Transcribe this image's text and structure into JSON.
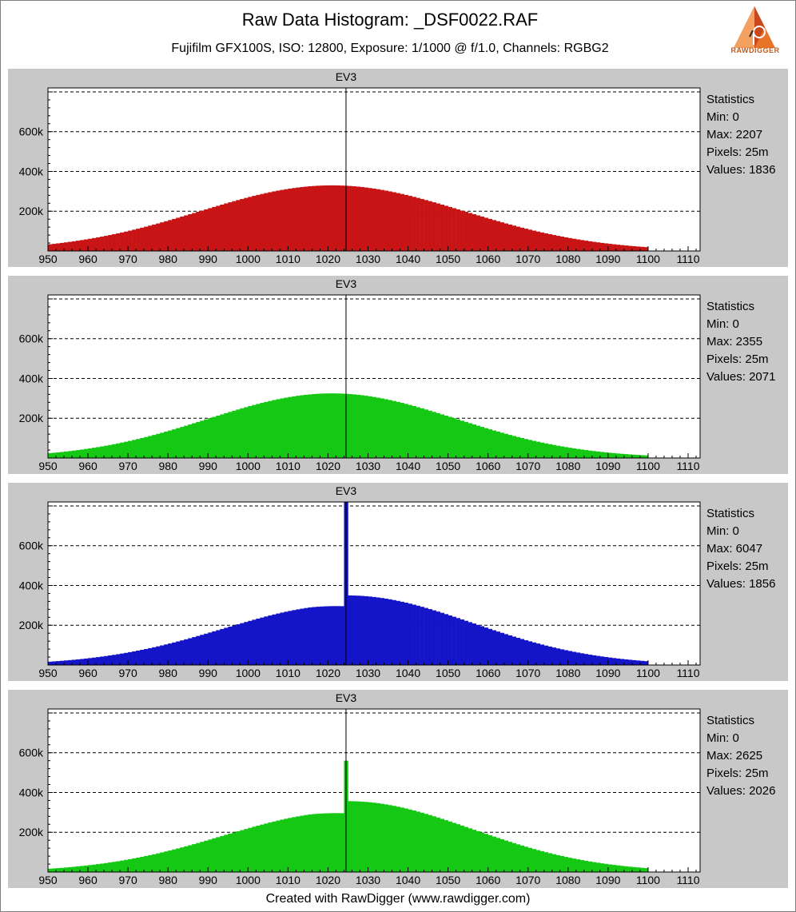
{
  "page": {
    "title": "Raw Data Histogram: _DSF0022.RAF",
    "subtitle": "Fujifilm GFX100S, ISO: 12800, Exposure: 1/1000 @ f/1.0, Channels: RGBG2",
    "footer": "Created with RawDigger (www.rawdigger.com)",
    "logo_text": "RAWDIGGER"
  },
  "chart_data": [
    {
      "type": "bar",
      "name": "",
      "color": "#c81414",
      "xlim": [
        950,
        1113
      ],
      "ylim": [
        0,
        820000
      ],
      "xticks": [
        950,
        960,
        970,
        980,
        990,
        1000,
        1010,
        1020,
        1030,
        1040,
        1050,
        1060,
        1070,
        1080,
        1090,
        1100,
        1110
      ],
      "yticks": [
        200000,
        400000,
        600000
      ],
      "ytick_labels": [
        "200k",
        "400k",
        "600k"
      ],
      "marker": {
        "label": "EV3",
        "x": 1024
      },
      "distribution": {
        "x_start": 950,
        "x_end": 1100,
        "peak_x": 1021,
        "peak_value": 330000,
        "sigma": 33
      },
      "spike": null,
      "stats": {
        "heading": "Statistics",
        "min": "Min: 0",
        "max": "Max: 2207",
        "pixels": "Pixels: 25m",
        "values": "Values: 1836"
      }
    },
    {
      "type": "bar",
      "name": "",
      "color": "#14c814",
      "xlim": [
        950,
        1113
      ],
      "ylim": [
        0,
        820000
      ],
      "xticks": [
        950,
        960,
        970,
        980,
        990,
        1000,
        1010,
        1020,
        1030,
        1040,
        1050,
        1060,
        1070,
        1080,
        1090,
        1100,
        1110
      ],
      "yticks": [
        200000,
        400000,
        600000
      ],
      "ytick_labels": [
        "200k",
        "400k",
        "600k"
      ],
      "marker": {
        "label": "EV3",
        "x": 1024
      },
      "distribution": {
        "x_start": 950,
        "x_end": 1100,
        "peak_x": 1021,
        "peak_value": 325000,
        "sigma": 31
      },
      "spike": null,
      "stats": {
        "heading": "Statistics",
        "min": "Min: 0",
        "max": "Max: 2355",
        "pixels": "Pixels: 25m",
        "values": "Values: 2071"
      }
    },
    {
      "type": "bar",
      "name": "",
      "color": "#1414c8",
      "xlim": [
        950,
        1113
      ],
      "ylim": [
        0,
        820000
      ],
      "xticks": [
        950,
        960,
        970,
        980,
        990,
        1000,
        1010,
        1020,
        1030,
        1040,
        1050,
        1060,
        1070,
        1080,
        1090,
        1100,
        1110
      ],
      "yticks": [
        200000,
        400000,
        600000
      ],
      "ytick_labels": [
        "200k",
        "400k",
        "600k"
      ],
      "marker": {
        "label": "EV3",
        "x": 1024
      },
      "distribution": {
        "x_start": 950,
        "x_end": 1100,
        "peak_x": 1025,
        "peak_value": 330000,
        "sigma": 31,
        "left_scale": 0.92,
        "right_scale": 1.06
      },
      "spike": {
        "x": 1024,
        "value": 820000
      },
      "stats": {
        "heading": "Statistics",
        "min": "Min: 0",
        "max": "Max: 6047",
        "pixels": "Pixels: 25m",
        "values": "Values: 1856"
      }
    },
    {
      "type": "bar",
      "name": "",
      "color": "#14c814",
      "xlim": [
        950,
        1113
      ],
      "ylim": [
        0,
        820000
      ],
      "xticks": [
        950,
        960,
        970,
        980,
        990,
        1000,
        1010,
        1020,
        1030,
        1040,
        1050,
        1060,
        1070,
        1080,
        1090,
        1100,
        1110
      ],
      "yticks": [
        200000,
        400000,
        600000
      ],
      "ytick_labels": [
        "200k",
        "400k",
        "600k"
      ],
      "marker": {
        "label": "EV3",
        "x": 1024
      },
      "distribution": {
        "x_start": 950,
        "x_end": 1100,
        "peak_x": 1025,
        "peak_value": 330000,
        "sigma": 31,
        "left_scale": 0.92,
        "right_scale": 1.08
      },
      "spike": {
        "x": 1024,
        "value": 560000
      },
      "stats": {
        "heading": "Statistics",
        "min": "Min: 0",
        "max": "Max: 2625",
        "pixels": "Pixels: 25m",
        "values": "Values: 2026"
      }
    }
  ]
}
